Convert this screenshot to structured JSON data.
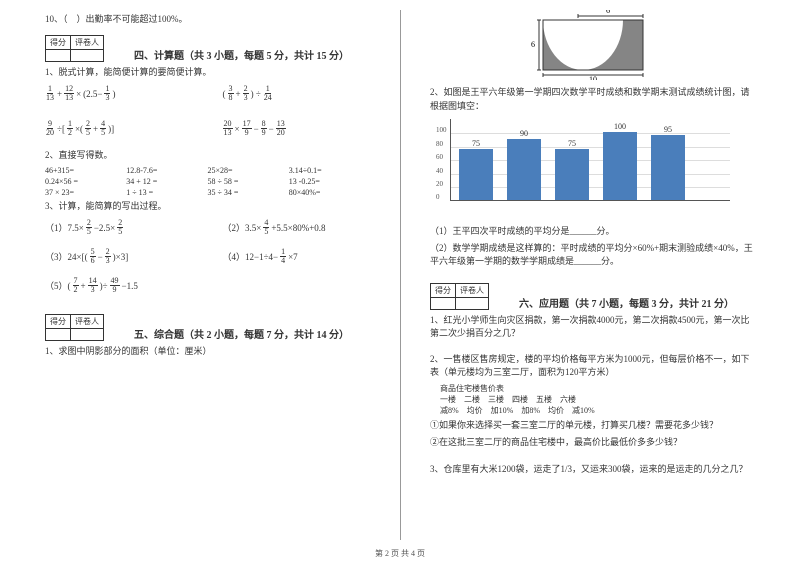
{
  "left": {
    "q10": "10、（　）出勤率不可能超过100%。",
    "score_header": [
      "得分",
      "评卷人"
    ],
    "sec4_title": "四、计算题（共 3 小题，每题 5 分，共计 15 分）",
    "sec4_q1": "1、脱式计算，能简便计算的要简便计算。",
    "sec4_q2": "2、直接写得数。",
    "direct": [
      "46+315=",
      "12.8-7.6=",
      "25×28=",
      "3.14÷0.1=",
      "0.24×56 =",
      "34 + 12 =",
      "58 ÷ 58 =",
      "13 -0.25=",
      "37 × 23=",
      "1 ÷ 13 =",
      "35 ÷ 34 =",
      "80×40%="
    ],
    "sec4_q3": "3、计算，能简算的写出过程。",
    "sec5_title": "五、综合题（共 2 小题，每题 7 分，共计 14 分）",
    "sec5_q1": "1、求图中阴影部分的面积（单位：厘米）"
  },
  "right": {
    "diagram": {
      "w": 10,
      "h": 6,
      "arc_w": 6
    },
    "q2": "2、如图是王平六年级第一学期四次数学平时成绩和数学期末测试成绩统计图，请根据图填空：",
    "chart": {
      "bar_color": "#4a7ebb",
      "grid_color": "#dddddd",
      "axis_color": "#555555",
      "bg": "#ffffff",
      "ymax": 120,
      "ytick_step": 20,
      "values": [
        75,
        90,
        75,
        100,
        95
      ],
      "labels": [
        "75",
        "90",
        "75",
        "100",
        "95"
      ]
    },
    "q2_sub1": "（1）王平四次平时成绩的平均分是______分。",
    "q2_sub2": "（2）数学学期成绩是这样算的：平时成绩的平均分×60%+期末测验成绩×40%，王平六年级第一学期的数学学期成绩是______分。",
    "sec6_title": "六、应用题（共 7 小题，每题 3 分，共计 21 分）",
    "sec6_q1": "1、红光小学师生向灾区捐款，第一次捐款4000元，第二次捐款4500元，第一次比第二次少捐百分之几？",
    "sec6_q2": "2、一售楼区售房规定，楼的平均价格每平方米为1000元，但每层价格不一，如下表（单元楼均为三室二厅，面积为120平方米）",
    "price_table": {
      "header": "商品住宅楼售价表",
      "cols": [
        "一楼",
        "二楼",
        "三楼",
        "四楼",
        "五楼",
        "六楼"
      ],
      "row": [
        "减8%",
        "均价",
        "加10%",
        "加8%",
        "均价",
        "减10%"
      ]
    },
    "sec6_q2_s1": "①如果你来选择买一套三室二厅的单元楼，打算买几楼？需要花多少钱？",
    "sec6_q2_s2": "②在这批三室二厅的商品住宅楼中，最高价比最低价多多少钱？",
    "sec6_q3": "3、仓库里有大米1200袋，运走了1/3，又运来300袋，运来的是运走的几分之几？"
  },
  "footer": "第 2 页 共 4 页"
}
